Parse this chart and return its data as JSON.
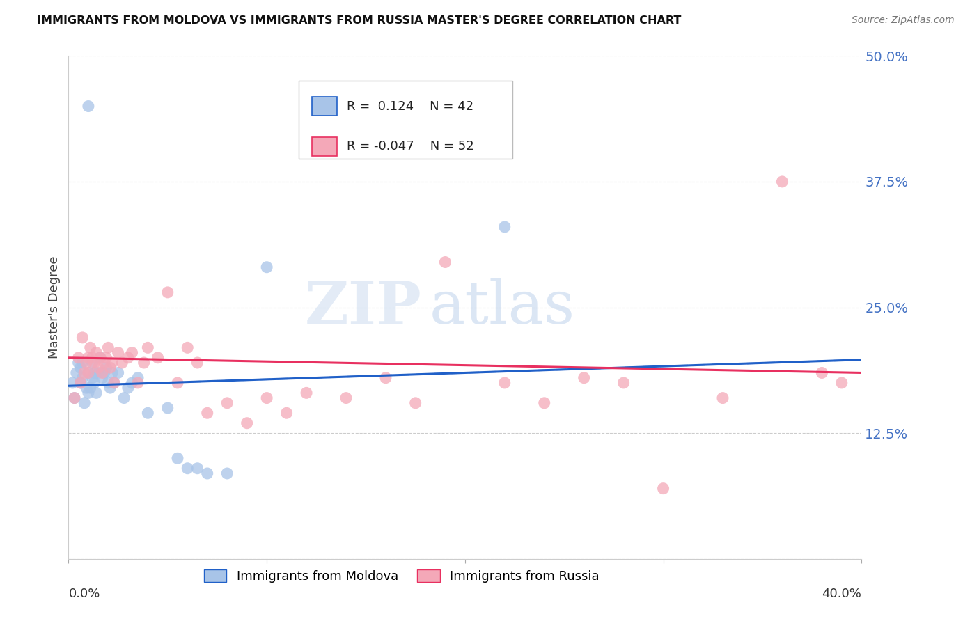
{
  "title": "IMMIGRANTS FROM MOLDOVA VS IMMIGRANTS FROM RUSSIA MASTER'S DEGREE CORRELATION CHART",
  "source": "Source: ZipAtlas.com",
  "ylabel": "Master's Degree",
  "x_label_bottom_left": "0.0%",
  "x_label_bottom_right": "40.0%",
  "y_ticks": [
    0.0,
    0.125,
    0.25,
    0.375,
    0.5
  ],
  "y_tick_labels": [
    "",
    "12.5%",
    "25.0%",
    "37.5%",
    "50.0%"
  ],
  "xlim": [
    0.0,
    0.4
  ],
  "ylim": [
    0.0,
    0.5
  ],
  "R_moldova": 0.124,
  "N_moldova": 42,
  "R_russia": -0.047,
  "N_russia": 52,
  "color_moldova": "#a8c4e8",
  "color_russia": "#f4a8b8",
  "trend_color_moldova": "#2060c8",
  "trend_color_russia": "#e83060",
  "moldova_x": [
    0.002,
    0.003,
    0.004,
    0.005,
    0.006,
    0.006,
    0.007,
    0.007,
    0.008,
    0.009,
    0.01,
    0.01,
    0.011,
    0.012,
    0.012,
    0.013,
    0.013,
    0.014,
    0.015,
    0.016,
    0.017,
    0.018,
    0.019,
    0.02,
    0.021,
    0.022,
    0.023,
    0.025,
    0.028,
    0.03,
    0.032,
    0.035,
    0.04,
    0.05,
    0.055,
    0.06,
    0.065,
    0.07,
    0.08,
    0.1,
    0.22,
    0.01
  ],
  "moldova_y": [
    0.175,
    0.16,
    0.185,
    0.195,
    0.19,
    0.175,
    0.18,
    0.195,
    0.155,
    0.17,
    0.165,
    0.185,
    0.17,
    0.18,
    0.195,
    0.175,
    0.185,
    0.165,
    0.185,
    0.2,
    0.18,
    0.185,
    0.19,
    0.175,
    0.17,
    0.185,
    0.175,
    0.185,
    0.16,
    0.17,
    0.175,
    0.18,
    0.145,
    0.15,
    0.1,
    0.09,
    0.09,
    0.085,
    0.085,
    0.29,
    0.33,
    0.45
  ],
  "russia_x": [
    0.003,
    0.005,
    0.006,
    0.007,
    0.008,
    0.009,
    0.01,
    0.01,
    0.011,
    0.012,
    0.013,
    0.014,
    0.015,
    0.016,
    0.017,
    0.018,
    0.019,
    0.02,
    0.021,
    0.022,
    0.023,
    0.025,
    0.027,
    0.03,
    0.032,
    0.035,
    0.038,
    0.04,
    0.045,
    0.05,
    0.055,
    0.06,
    0.065,
    0.07,
    0.08,
    0.09,
    0.1,
    0.11,
    0.12,
    0.14,
    0.16,
    0.175,
    0.19,
    0.22,
    0.24,
    0.26,
    0.28,
    0.3,
    0.33,
    0.36,
    0.38,
    0.39
  ],
  "russia_y": [
    0.16,
    0.2,
    0.175,
    0.22,
    0.185,
    0.195,
    0.2,
    0.185,
    0.21,
    0.2,
    0.195,
    0.205,
    0.19,
    0.2,
    0.185,
    0.195,
    0.2,
    0.21,
    0.19,
    0.195,
    0.175,
    0.205,
    0.195,
    0.2,
    0.205,
    0.175,
    0.195,
    0.21,
    0.2,
    0.265,
    0.175,
    0.21,
    0.195,
    0.145,
    0.155,
    0.135,
    0.16,
    0.145,
    0.165,
    0.16,
    0.18,
    0.155,
    0.295,
    0.175,
    0.155,
    0.18,
    0.175,
    0.07,
    0.16,
    0.375,
    0.185,
    0.175
  ],
  "watermark_zip": "ZIP",
  "watermark_atlas": "atlas",
  "legend_moldova": "Immigrants from Moldova",
  "legend_russia": "Immigrants from Russia",
  "trend_mol_x0": 0.0,
  "trend_mol_x1": 0.4,
  "trend_mol_y0": 0.172,
  "trend_mol_y1": 0.198,
  "trend_rus_x0": 0.0,
  "trend_rus_x1": 0.4,
  "trend_rus_y0": 0.2,
  "trend_rus_y1": 0.185
}
